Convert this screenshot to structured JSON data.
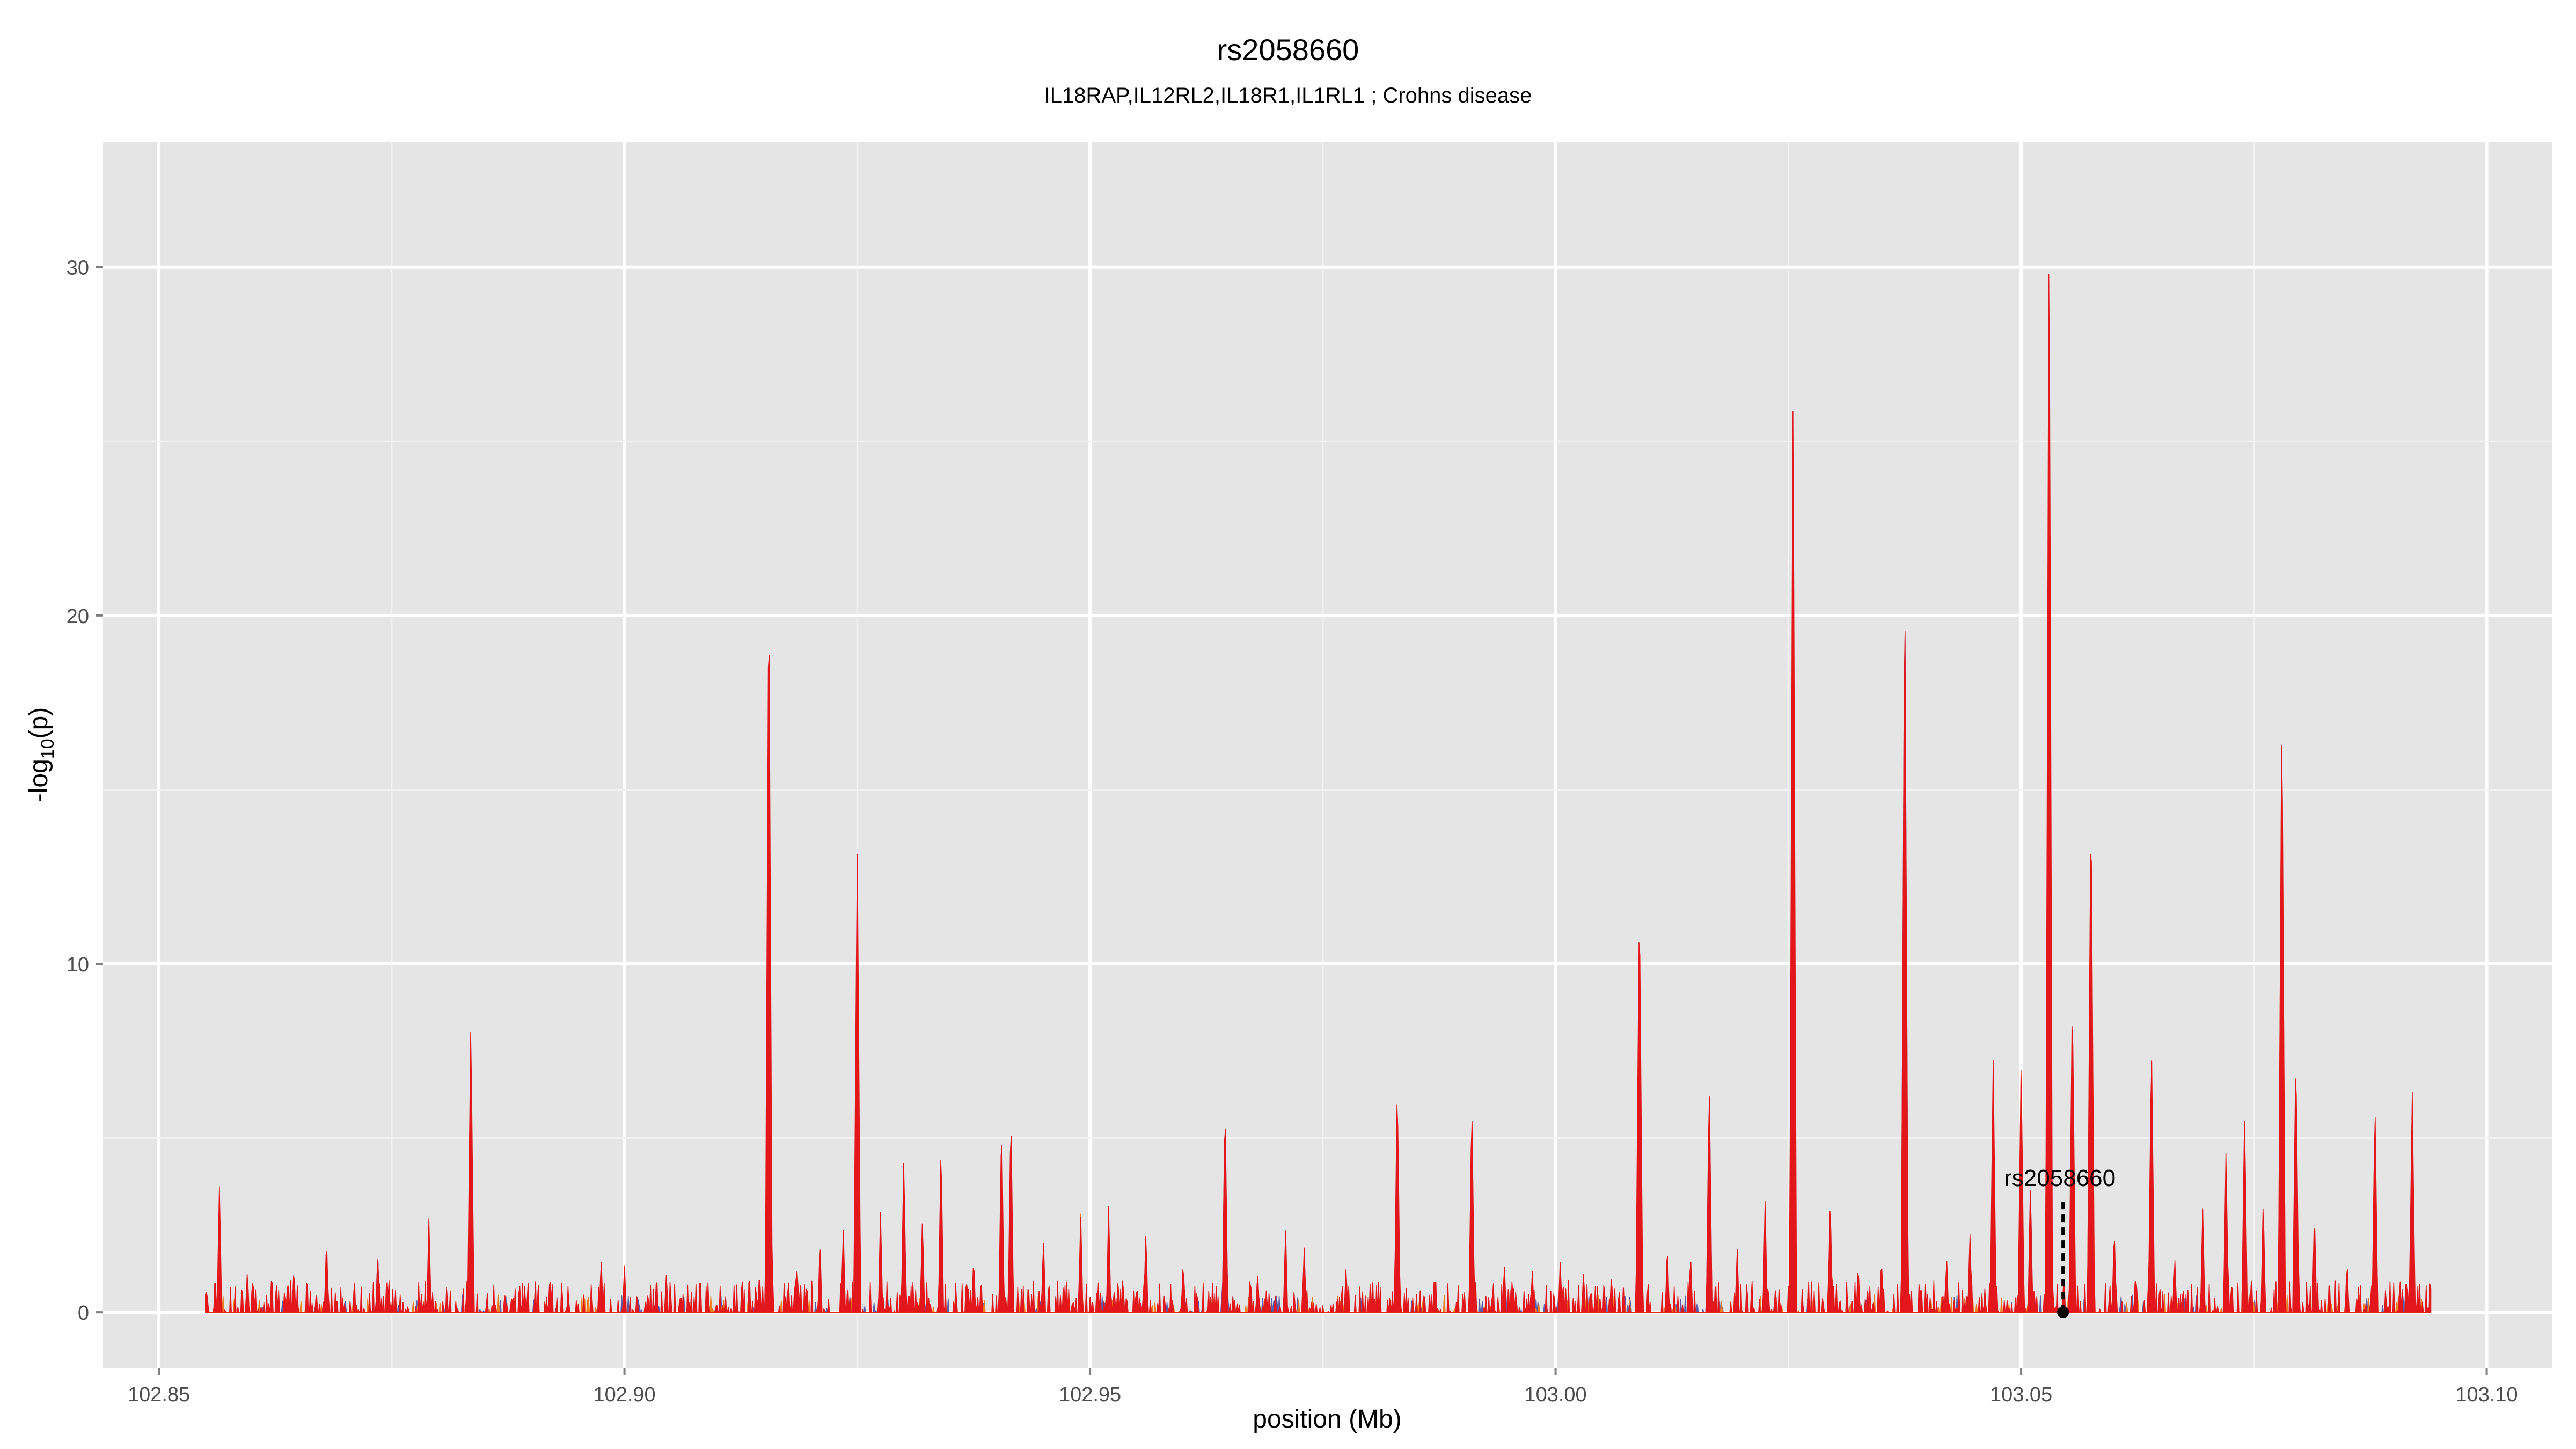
{
  "chart_data": {
    "type": "area",
    "title": "rs2058660",
    "subtitle": "IL18RAP,IL12RL2,IL18R1,IL1RL1 ; Crohns disease",
    "xlabel": "position (Mb)",
    "ylabel": "-log10(p)",
    "ylabel_parts": {
      "pre": "-log",
      "sub": "10",
      "post": "(p)"
    },
    "xlim": [
      102.844,
      103.107
    ],
    "ylim": [
      -1.6,
      33.6
    ],
    "x_ticks": [
      102.85,
      102.9,
      102.95,
      103.0,
      103.05,
      103.1
    ],
    "x_tick_labels": [
      "102.85",
      "102.90",
      "102.95",
      "103.00",
      "103.05",
      "103.10"
    ],
    "y_ticks": [
      0,
      10,
      20,
      30
    ],
    "y_tick_labels": [
      "0",
      "10",
      "20",
      "30"
    ],
    "grid": true,
    "x_range": [
      102.855,
      103.094
    ],
    "background_peaks": [
      [
        102.8565,
        3.7
      ],
      [
        102.8595,
        1.2
      ],
      [
        102.8645,
        1.3
      ],
      [
        102.868,
        2.2
      ],
      [
        102.8735,
        1.7
      ],
      [
        102.879,
        2.7
      ],
      [
        102.8835,
        8.5
      ],
      [
        102.892,
        1.1
      ],
      [
        102.8975,
        1.6
      ],
      [
        102.9,
        1.4
      ],
      [
        102.9045,
        1.1
      ],
      [
        102.9145,
        1.2
      ],
      [
        102.9155,
        21.5
      ],
      [
        102.9185,
        1.4
      ],
      [
        102.921,
        2.0
      ],
      [
        102.9235,
        2.5
      ],
      [
        102.925,
        13.4
      ],
      [
        102.9275,
        2.9
      ],
      [
        102.93,
        4.5
      ],
      [
        102.932,
        2.8
      ],
      [
        102.934,
        4.9
      ],
      [
        102.9375,
        1.6
      ],
      [
        102.9405,
        5.6
      ],
      [
        102.9415,
        5.8
      ],
      [
        102.945,
        2.2
      ],
      [
        102.949,
        2.8
      ],
      [
        102.952,
        3.1
      ],
      [
        102.956,
        2.4
      ],
      [
        102.96,
        1.5
      ],
      [
        102.9645,
        6.1
      ],
      [
        102.968,
        1.2
      ],
      [
        102.971,
        2.5
      ],
      [
        102.973,
        1.9
      ],
      [
        102.9775,
        1.3
      ],
      [
        102.983,
        6.7
      ],
      [
        102.987,
        1.1
      ],
      [
        102.991,
        6.1
      ],
      [
        102.9945,
        1.4
      ],
      [
        102.9975,
        1.2
      ],
      [
        103.0005,
        1.5
      ],
      [
        103.003,
        1.2
      ],
      [
        103.006,
        1.1
      ],
      [
        103.009,
        12.0
      ],
      [
        103.012,
        2.0
      ],
      [
        103.0145,
        1.7
      ],
      [
        103.0165,
        6.7
      ],
      [
        103.0195,
        1.9
      ],
      [
        103.0225,
        3.2
      ],
      [
        103.0255,
        26.8
      ],
      [
        103.0295,
        3.3
      ],
      [
        103.0325,
        1.4
      ],
      [
        103.035,
        1.6
      ],
      [
        103.0375,
        21.6
      ],
      [
        103.042,
        1.6
      ],
      [
        103.0445,
        2.3
      ],
      [
        103.047,
        7.3
      ],
      [
        103.05,
        7.3
      ],
      [
        103.051,
        3.8
      ],
      [
        103.053,
        32.2
      ],
      [
        103.0555,
        9.2
      ],
      [
        103.0575,
        15.0
      ],
      [
        103.06,
        2.5
      ],
      [
        103.064,
        7.8
      ],
      [
        103.0665,
        1.6
      ],
      [
        103.0695,
        3.0
      ],
      [
        103.072,
        4.7
      ],
      [
        103.074,
        5.8
      ],
      [
        103.076,
        3.3
      ],
      [
        103.078,
        17.8
      ],
      [
        103.0795,
        7.6
      ],
      [
        103.0815,
        3.0
      ],
      [
        103.085,
        1.5
      ],
      [
        103.088,
        6.1
      ],
      [
        103.092,
        6.5
      ]
    ],
    "series": [
      {
        "name": "purple",
        "color": "#5b5ea6",
        "peaks": [
          [
            102.8735,
            1.7
          ],
          [
            102.93,
            4.3
          ],
          [
            102.9645,
            6.0
          ],
          [
            102.973,
            1.8
          ],
          [
            103.0165,
            6.6
          ],
          [
            103.0375,
            21.5
          ],
          [
            103.051,
            3.6
          ]
        ]
      },
      {
        "name": "orange",
        "color": "#f07c1e",
        "peaks": [
          [
            102.949,
            2.9
          ],
          [
            102.991,
            5.9
          ],
          [
            103.05,
            7.2
          ],
          [
            103.0575,
            14.9
          ],
          [
            103.074,
            5.6
          ],
          [
            103.078,
            17.6
          ],
          [
            103.088,
            6.0
          ]
        ]
      },
      {
        "name": "red",
        "color": "#e3161b",
        "peaks": "background_peaks"
      }
    ],
    "annotation": {
      "label": "rs2058660",
      "x": 103.0545,
      "y": 0
    }
  }
}
